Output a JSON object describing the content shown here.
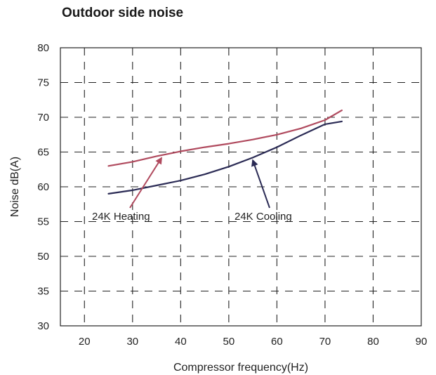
{
  "chart_data": {
    "type": "line",
    "title": "Outdoor side noise",
    "xlabel": "Compressor frequency(Hz)",
    "ylabel": "Noise dB(A)",
    "x_ticks": [
      "20",
      "30",
      "40",
      "50",
      "60",
      "70",
      "80",
      "90"
    ],
    "y_ticks": [
      "80",
      "75",
      "70",
      "65",
      "60",
      "55",
      "50",
      "35",
      "30"
    ],
    "xlim": [
      15,
      90
    ],
    "grid": true,
    "series": [
      {
        "name": "24K Heating",
        "color": "#b04a5e",
        "x": [
          25,
          30,
          35,
          40,
          45,
          50,
          55,
          60,
          65,
          70,
          73.5
        ],
        "y": [
          63.0,
          63.6,
          64.4,
          65.1,
          65.7,
          66.2,
          66.8,
          67.5,
          68.4,
          69.6,
          71.0
        ]
      },
      {
        "name": "24K Cooling",
        "color": "#2b2b55",
        "x": [
          25,
          30,
          35,
          40,
          45,
          50,
          55,
          60,
          65,
          70,
          73.5
        ],
        "y": [
          59.0,
          59.5,
          60.2,
          60.9,
          61.8,
          62.9,
          64.2,
          65.7,
          67.4,
          69.0,
          69.4
        ]
      }
    ],
    "annotations": [
      {
        "text": "24K Heating",
        "series": "24K Heating"
      },
      {
        "text": "24K Cooling",
        "series": "24K Cooling"
      }
    ]
  }
}
